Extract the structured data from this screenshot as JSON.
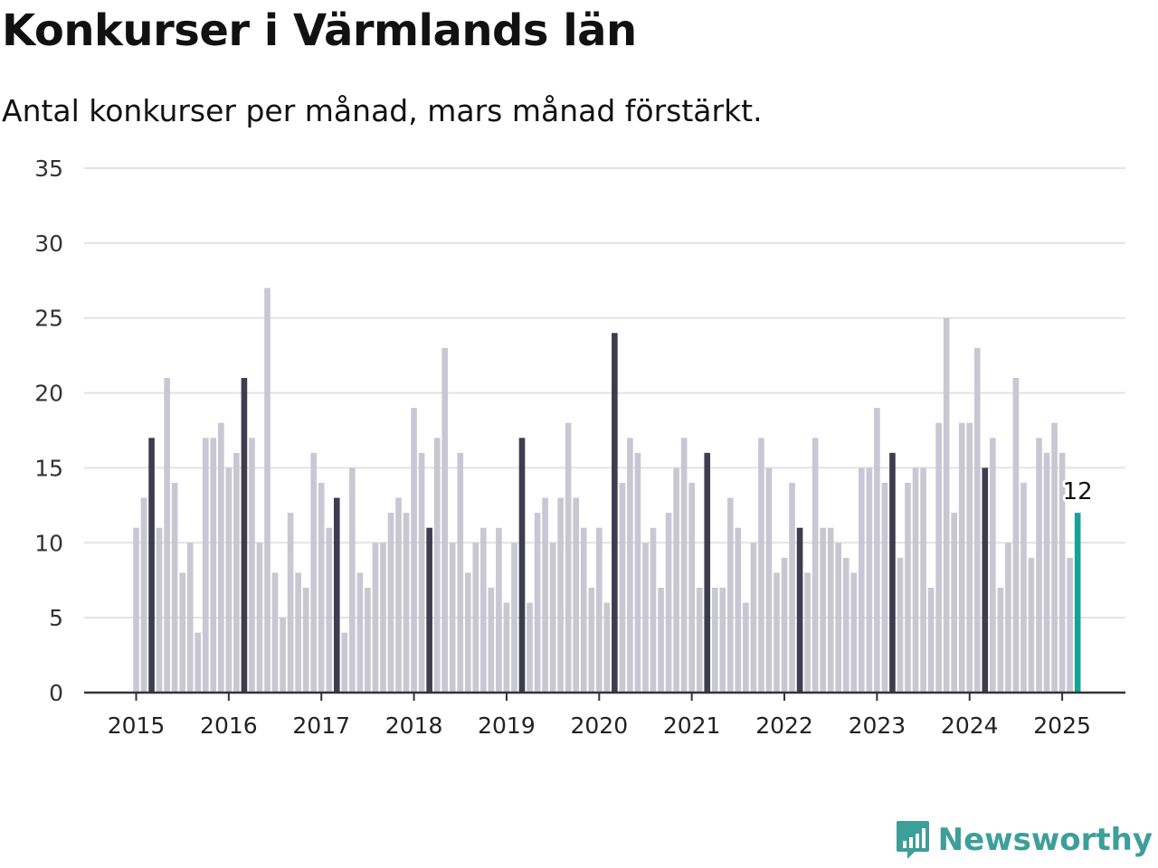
{
  "header": {
    "title": "Konkurser i Värmlands län",
    "subtitle": "Antal konkurser per månad, mars månad förstärkt."
  },
  "brand": {
    "name": "Newsworthy",
    "icon": "bar-chart-logo-icon",
    "color": "#3d9e9a"
  },
  "colors": {
    "normal": "#c8c7d3",
    "march": "#3e3d4f",
    "latest": "#16a391",
    "grid": "#e3e3e3",
    "axis": "#333333"
  },
  "chart_data": {
    "type": "bar",
    "title": "Konkurser i Värmlands län",
    "subtitle": "Antal konkurser per månad, mars månad förstärkt.",
    "xlabel": "",
    "ylabel": "",
    "ylim": [
      0,
      35
    ],
    "yticks": [
      "0",
      "5",
      "10",
      "15",
      "20",
      "25",
      "30",
      "35"
    ],
    "xticks": [
      "2015",
      "2016",
      "2017",
      "2018",
      "2019",
      "2020",
      "2021",
      "2022",
      "2023",
      "2024",
      "2025"
    ],
    "start": "2015-01",
    "end": "2025-03",
    "highlight_month": "mars",
    "grid": true,
    "values": [
      11,
      13,
      17,
      11,
      21,
      14,
      8,
      10,
      4,
      17,
      17,
      18,
      15,
      16,
      21,
      17,
      10,
      27,
      8,
      5,
      12,
      8,
      7,
      16,
      14,
      11,
      13,
      4,
      15,
      8,
      7,
      10,
      10,
      12,
      13,
      12,
      19,
      16,
      11,
      17,
      23,
      10,
      16,
      8,
      10,
      11,
      7,
      11,
      6,
      10,
      17,
      6,
      12,
      13,
      10,
      13,
      18,
      13,
      11,
      7,
      11,
      6,
      24,
      14,
      17,
      16,
      10,
      11,
      7,
      12,
      15,
      17,
      14,
      7,
      16,
      7,
      7,
      13,
      11,
      6,
      10,
      17,
      15,
      8,
      9,
      14,
      11,
      8,
      17,
      11,
      11,
      10,
      9,
      8,
      15,
      15,
      19,
      14,
      16,
      9,
      14,
      15,
      15,
      7,
      18,
      25,
      12,
      18,
      18,
      23,
      15,
      17,
      7,
      10,
      21,
      14,
      9,
      17,
      16,
      18,
      16,
      9,
      12
    ],
    "annotation": {
      "label": "12",
      "month": "2025-03",
      "value": 12
    }
  }
}
